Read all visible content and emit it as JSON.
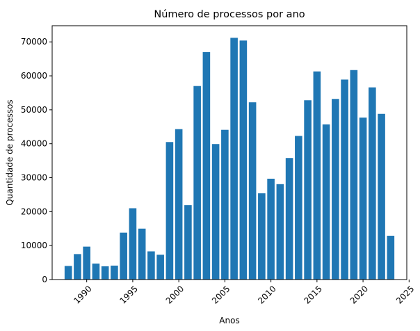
{
  "chart_data": {
    "type": "bar",
    "title": "Número de processos por ano",
    "xlabel": "Anos",
    "ylabel": "Quantidade de processos",
    "x": [
      1988,
      1989,
      1990,
      1991,
      1992,
      1993,
      1994,
      1995,
      1996,
      1997,
      1998,
      1999,
      2000,
      2001,
      2002,
      2003,
      2004,
      2005,
      2006,
      2007,
      2008,
      2009,
      2010,
      2011,
      2012,
      2013,
      2014,
      2015,
      2016,
      2017,
      2018,
      2019,
      2020,
      2021,
      2022,
      2023
    ],
    "values": [
      4000,
      7500,
      9700,
      4700,
      3900,
      4100,
      13800,
      21000,
      15000,
      8300,
      7300,
      40500,
      44300,
      21900,
      57000,
      67000,
      39900,
      44100,
      71200,
      70400,
      52200,
      25400,
      29700,
      28100,
      35800,
      42300,
      52800,
      61300,
      45700,
      53200,
      58900,
      61700,
      47700,
      56600,
      48800,
      12900
    ],
    "xticks": [
      1990,
      1995,
      2000,
      2005,
      2010,
      2015,
      2020,
      2025
    ],
    "xtick_labels": [
      "1990",
      "1995",
      "2000",
      "2005",
      "2010",
      "2015",
      "2020",
      "2025"
    ],
    "yticks": [
      0,
      10000,
      20000,
      30000,
      40000,
      50000,
      60000,
      70000
    ],
    "ytick_labels": [
      "0",
      "10000",
      "20000",
      "30000",
      "40000",
      "50000",
      "60000",
      "70000"
    ],
    "xlim": [
      1986.25,
      1924.75
    ],
    "ylim": [
      0,
      74760
    ],
    "bar_color": "#1f77b4",
    "grid": false,
    "legend": "none"
  }
}
